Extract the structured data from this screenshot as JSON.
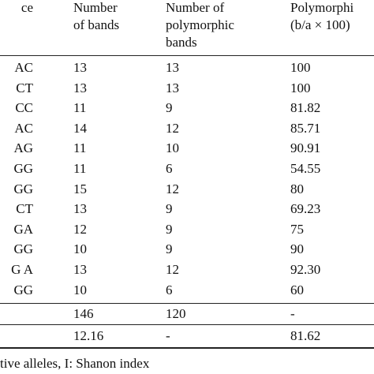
{
  "table": {
    "header": {
      "col0": "ce",
      "col1": [
        "Number",
        "of bands"
      ],
      "col2": [
        "Number of",
        "polymorphic",
        "bands"
      ],
      "col3": [
        "Polymorphi",
        "(b/a × 100)"
      ]
    },
    "rows": [
      [
        "AC",
        "13",
        "13",
        "100"
      ],
      [
        "CT",
        "13",
        "13",
        "100"
      ],
      [
        "CC",
        "11",
        "9",
        "81.82"
      ],
      [
        "AC",
        "14",
        "12",
        "85.71"
      ],
      [
        "AG",
        "11",
        "10",
        "90.91"
      ],
      [
        "GG",
        "11",
        "6",
        "54.55"
      ],
      [
        "GG",
        "15",
        "12",
        "80"
      ],
      [
        "CT",
        "13",
        "9",
        "69.23"
      ],
      [
        "GA",
        "12",
        "9",
        "75"
      ],
      [
        "GG",
        "10",
        "9",
        "90"
      ],
      [
        "G A",
        "13",
        "12",
        "92.30"
      ],
      [
        "GG",
        "10",
        "6",
        "60"
      ]
    ],
    "total_row": [
      "",
      "146",
      "120",
      "-"
    ],
    "mean_row": [
      "",
      "12.16",
      "-",
      "81.62"
    ]
  },
  "footnote": "tive alleles, I: Shanon index"
}
